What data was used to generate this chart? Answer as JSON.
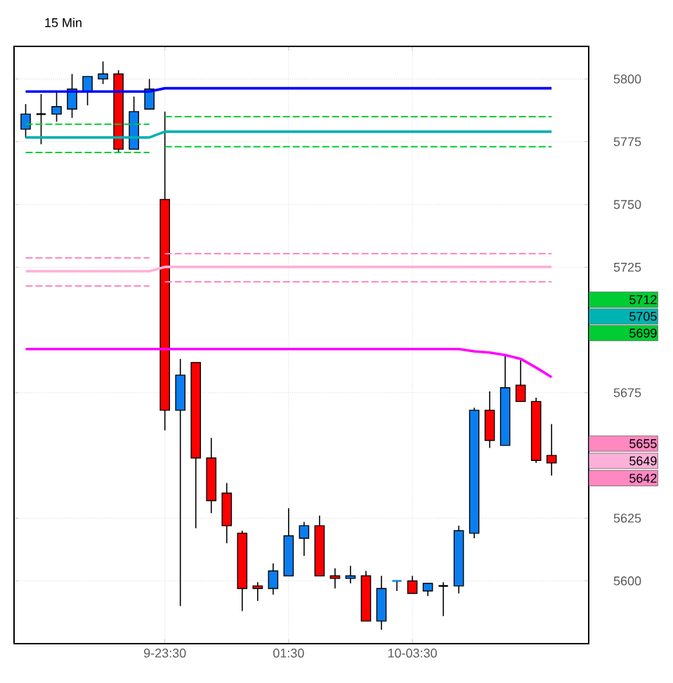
{
  "chart_data": {
    "type": "candlestick",
    "title": "15 Min",
    "categories": [
      null,
      null,
      null,
      null,
      null,
      null,
      null,
      null,
      null,
      "9-23:30",
      null,
      null,
      null,
      null,
      null,
      null,
      null,
      "01:30",
      null,
      null,
      null,
      null,
      null,
      null,
      null,
      "10-03:30",
      null,
      null,
      null,
      null,
      null,
      null,
      null,
      null,
      null
    ],
    "ohlc": [
      [
        5780,
        5790,
        5776.5,
        5786
      ],
      [
        5786,
        5794,
        5774,
        5786
      ],
      [
        5786,
        5795,
        5783,
        5789
      ],
      [
        5788,
        5802,
        5784.5,
        5796
      ],
      [
        5795,
        5801,
        5789.5,
        5801
      ],
      [
        5800,
        5807,
        5798,
        5802
      ],
      [
        5802,
        5803.5,
        5770.5,
        5772
      ],
      [
        5772,
        5793,
        5772,
        5787
      ],
      [
        5788,
        5800,
        5788,
        5796
      ],
      [
        5752,
        5787,
        5660,
        5668
      ],
      [
        5668,
        5688.5,
        5590,
        5682
      ],
      [
        5687,
        5687,
        5621,
        5649
      ],
      [
        5649,
        5657,
        5627,
        5632
      ],
      [
        5635,
        5639,
        5615,
        5622
      ],
      [
        5619,
        5620,
        5588,
        5597
      ],
      [
        5598,
        5599.5,
        5592,
        5597
      ],
      [
        5597,
        5607,
        5594.5,
        5604
      ],
      [
        5602,
        5629,
        5602,
        5618
      ],
      [
        5617,
        5623.5,
        5610,
        5622
      ],
      [
        5622,
        5626,
        5602,
        5602
      ],
      [
        5602,
        5605,
        5597,
        5601
      ],
      [
        5601,
        5606,
        5599,
        5602
      ],
      [
        5602,
        5604,
        5584,
        5584
      ],
      [
        5584,
        5602,
        5580.5,
        5597
      ],
      [
        5600,
        5600,
        5596,
        5600
      ],
      [
        5600,
        5602,
        5595,
        5595
      ],
      [
        5596,
        5599,
        5594,
        5599
      ],
      [
        5598,
        5599.5,
        5586,
        5598
      ],
      [
        5598,
        5622,
        5595,
        5620
      ],
      [
        5619,
        5669,
        5617,
        5668
      ],
      [
        5668,
        5675.5,
        5653,
        5656
      ],
      [
        5654,
        5690,
        5654,
        5677
      ],
      [
        5678,
        5688,
        5671.5,
        5671.5
      ],
      [
        5671.5,
        5673,
        5647,
        5648
      ],
      [
        5650,
        5662.5,
        5642,
        5647
      ]
    ],
    "colors": [
      "#0a7ef0",
      "#000000",
      "#0a7ef0",
      "#0a7ef0",
      "#0a7ef0",
      "#0a7ef0",
      "#ff0000",
      "#0a7ef0",
      "#0a7ef0",
      "#ff0000",
      "#0a7ef0",
      "#ff0000",
      "#ff0000",
      "#ff0000",
      "#ff0000",
      "#ff0000",
      "#0a7ef0",
      "#0a7ef0",
      "#0a7ef0",
      "#ff0000",
      "#ff0000",
      "#0a7ef0",
      "#ff0000",
      "#0a7ef0",
      "#0a7ef0",
      "#ff0000",
      "#0a7ef0",
      "#000000",
      "#0a7ef0",
      "#0a7ef0",
      "#ff0000",
      "#0a7ef0",
      "#ff0000",
      "#ff0000",
      "#ff0000"
    ],
    "series": [
      {
        "type": "line",
        "color": "#0000ff",
        "values": [
          5795,
          5795,
          5795,
          5795,
          5795,
          5795,
          5795,
          5795,
          5795,
          5796.3,
          5796.3,
          5796.3,
          5796.3,
          5796.3,
          5796.3,
          5796.3,
          5796.3,
          5796.3,
          5796.3,
          5796.3,
          5796.3,
          5796.3,
          5796.3,
          5796.3,
          5796.3,
          5796.3,
          5796.3,
          5796.3,
          5796.3,
          5796.3,
          5796.3,
          5796.3,
          5796.3,
          5796.3,
          5796.3
        ]
      },
      {
        "type": "line",
        "color": "#00b0b0",
        "values": [
          5776.7,
          5776.7,
          5776.7,
          5776.7,
          5776.7,
          5776.7,
          5776.7,
          5776.7,
          5776.7,
          5779,
          5779,
          5779,
          5779,
          5779,
          5779,
          5779,
          5779,
          5779,
          5779,
          5779,
          5779,
          5779,
          5779,
          5779,
          5779,
          5779,
          5779,
          5779,
          5779,
          5779,
          5779,
          5779,
          5779,
          5779,
          5779
        ]
      },
      {
        "type": "line",
        "color": "#00cc33",
        "line_style": "dashed",
        "values": [
          5782,
          5782,
          5782,
          5782,
          5782,
          5782,
          5782,
          5782,
          5782,
          null,
          null,
          null,
          null,
          null,
          null,
          null,
          null,
          null,
          null,
          null,
          null,
          null,
          null,
          null,
          null,
          null,
          null,
          null,
          null,
          null,
          null,
          null,
          null,
          null,
          null
        ]
      },
      {
        "type": "line",
        "color": "#00cc33",
        "line_style": "dashed",
        "values": [
          null,
          null,
          null,
          null,
          null,
          null,
          null,
          null,
          null,
          5785,
          5785,
          5785,
          5785,
          5785,
          5785,
          5785,
          5785,
          5785,
          5785,
          5785,
          5785,
          5785,
          5785,
          5785,
          5785,
          5785,
          5785,
          5785,
          5785,
          5785,
          5785,
          5785,
          5785,
          5785,
          5785
        ]
      },
      {
        "type": "line",
        "color": "#00cc33",
        "line_style": "dashed",
        "values": [
          5770.7,
          5770.7,
          5770.7,
          5770.7,
          5770.7,
          5770.7,
          5770.7,
          5770.7,
          5770.7,
          null,
          null,
          null,
          null,
          null,
          null,
          null,
          null,
          null,
          null,
          null,
          null,
          null,
          null,
          null,
          null,
          null,
          null,
          null,
          null,
          null,
          null,
          null,
          null,
          null,
          null
        ]
      },
      {
        "type": "line",
        "color": "#00cc33",
        "line_style": "dashed",
        "values": [
          null,
          null,
          null,
          null,
          null,
          null,
          null,
          null,
          null,
          5773,
          5773,
          5773,
          5773,
          5773,
          5773,
          5773,
          5773,
          5773,
          5773,
          5773,
          5773,
          5773,
          5773,
          5773,
          5773,
          5773,
          5773,
          5773,
          5773,
          5773,
          5773,
          5773,
          5773,
          5773,
          5773
        ]
      },
      {
        "type": "line",
        "color": "#ff88c0",
        "line_style": "dashed",
        "values": [
          5728.7,
          5728.7,
          5728.7,
          5728.7,
          5728.7,
          5728.7,
          5728.7,
          5728.7,
          5728.7,
          null,
          null,
          null,
          null,
          null,
          null,
          null,
          null,
          null,
          null,
          null,
          null,
          null,
          null,
          null,
          null,
          null,
          null,
          null,
          null,
          null,
          null,
          null,
          null,
          null,
          null
        ]
      },
      {
        "type": "line",
        "color": "#ff88c0",
        "line_style": "dashed",
        "values": [
          null,
          null,
          null,
          null,
          null,
          null,
          null,
          null,
          null,
          5730.4,
          5730.4,
          5730.4,
          5730.4,
          5730.4,
          5730.4,
          5730.4,
          5730.4,
          5730.4,
          5730.4,
          5730.4,
          5730.4,
          5730.4,
          5730.4,
          5730.4,
          5730.4,
          5730.4,
          5730.4,
          5730.4,
          5730.4,
          5730.4,
          5730.4,
          5730.4,
          5730.4,
          5730.4,
          5730.4
        ]
      },
      {
        "type": "line",
        "color": "#ff88c0",
        "line_style": "dashed",
        "values": [
          5717.5,
          5717.5,
          5717.5,
          5717.5,
          5717.5,
          5717.5,
          5717.5,
          5717.5,
          5717.5,
          null,
          null,
          null,
          null,
          null,
          null,
          null,
          null,
          null,
          null,
          null,
          null,
          null,
          null,
          null,
          null,
          null,
          null,
          null,
          null,
          null,
          null,
          null,
          null,
          null,
          null
        ]
      },
      {
        "type": "line",
        "color": "#ff88c0",
        "line_style": "dashed",
        "values": [
          null,
          null,
          null,
          null,
          null,
          null,
          null,
          null,
          null,
          5719.2,
          5719.2,
          5719.2,
          5719.2,
          5719.2,
          5719.2,
          5719.2,
          5719.2,
          5719.2,
          5719.2,
          5719.2,
          5719.2,
          5719.2,
          5719.2,
          5719.2,
          5719.2,
          5719.2,
          5719.2,
          5719.2,
          5719.2,
          5719.2,
          5719.2,
          5719.2,
          5719.2,
          5719.2,
          5719.2
        ]
      },
      {
        "type": "line",
        "color": "#ffb0d8",
        "values": [
          5723.4,
          5723.4,
          5723.4,
          5723.4,
          5723.4,
          5723.4,
          5723.4,
          5723.4,
          5723.4,
          5725.1,
          5725.1,
          5725.1,
          5725.1,
          5725.1,
          5725.1,
          5725.1,
          5725.1,
          5725.1,
          5725.1,
          5725.1,
          5725.1,
          5725.1,
          5725.1,
          5725.1,
          5725.1,
          5725.1,
          5725.1,
          5725.1,
          5725.1,
          5725.1,
          5725.1,
          5725.1,
          5725.1,
          5725.1,
          5725.1
        ]
      },
      {
        "type": "line",
        "color": "#ff00ff",
        "values": [
          5692.4,
          5692.4,
          5692.4,
          5692.4,
          5692.4,
          5692.4,
          5692.4,
          5692.4,
          5692.4,
          5692.4,
          5692.4,
          5692.4,
          5692.4,
          5692.4,
          5692.4,
          5692.4,
          5692.4,
          5692.4,
          5692.4,
          5692.4,
          5692.4,
          5692.4,
          5692.4,
          5692.4,
          5692.4,
          5692.4,
          5692.4,
          5692.4,
          5692.4,
          5691.5,
          5691,
          5690,
          5688.5,
          5685,
          5681.2
        ]
      }
    ],
    "ylim": [
      5575,
      5813
    ],
    "yticks": [
      5600,
      5625,
      5675,
      5725,
      5750,
      5775,
      5800
    ],
    "grid": true,
    "annotations": [
      "5712",
      "5705",
      "5699",
      "5655",
      "5649",
      "5642"
    ]
  }
}
